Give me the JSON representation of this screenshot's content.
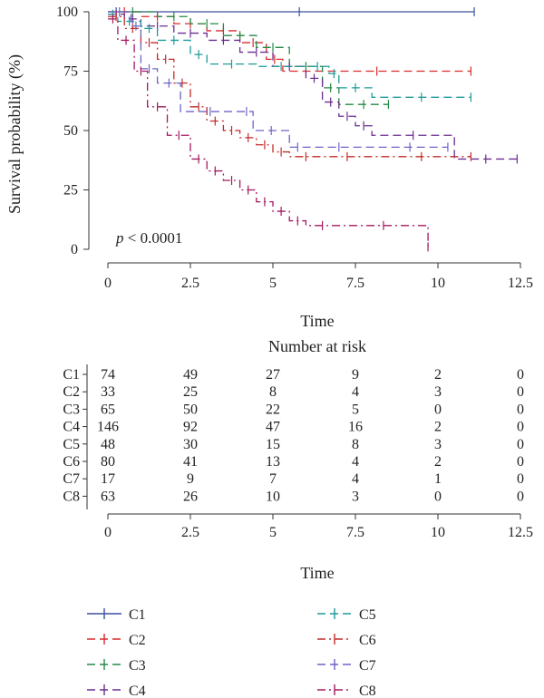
{
  "chart_data": {
    "type": "line",
    "subtype": "kaplan-meier",
    "xlabel": "Time",
    "ylabel": "Survival probability (%)",
    "xlim": [
      0,
      12.5
    ],
    "ylim": [
      0,
      100
    ],
    "x_ticks": [
      "0",
      "2.5",
      "5",
      "7.5",
      "10",
      "12.5"
    ],
    "y_ticks": [
      "0",
      "25",
      "50",
      "75",
      "100"
    ],
    "annotation": {
      "p_label": "p",
      "p_value": " < 0.0001"
    },
    "legend_position": "bottom",
    "series": [
      {
        "name": "C1",
        "color": "#3c4fa0",
        "dash": "solid",
        "x": [
          0,
          0.5,
          11.1
        ],
        "y": [
          100,
          100,
          100
        ]
      },
      {
        "name": "C2",
        "color": "#d92b2b",
        "dash": "dashed",
        "x": [
          0,
          1.0,
          2.0,
          3.0,
          4.0,
          4.8,
          5.3,
          11.0
        ],
        "y": [
          100,
          98,
          95,
          92,
          87,
          80,
          75,
          75
        ]
      },
      {
        "name": "C3",
        "color": "#238a46",
        "dash": "dashed",
        "x": [
          0,
          1.5,
          2.5,
          3.5,
          4.5,
          5.5,
          6.5,
          7.0,
          8.5
        ],
        "y": [
          100,
          98,
          95,
          90,
          85,
          77,
          68,
          61,
          61
        ]
      },
      {
        "name": "C4",
        "color": "#6a2d8f",
        "dash": "dashed",
        "x": [
          0,
          0.5,
          1.0,
          2.0,
          3.0,
          4.0,
          5.0,
          6.0,
          6.5,
          7.0,
          7.5,
          8.0,
          10.5,
          12.4
        ],
        "y": [
          99,
          97,
          94,
          91,
          88,
          83,
          77,
          72,
          62,
          56,
          52,
          48,
          38,
          38
        ]
      },
      {
        "name": "C5",
        "color": "#1f9a9a",
        "dash": "dashed",
        "x": [
          0,
          0.3,
          1.0,
          1.5,
          2.5,
          3.0,
          4.5,
          6.0,
          6.7,
          7.0,
          8.0,
          11.0
        ],
        "y": [
          99,
          96,
          93,
          88,
          82,
          78,
          77,
          77,
          74,
          68,
          64,
          64
        ]
      },
      {
        "name": "C6",
        "color": "#c42b2b",
        "dash": "dash-dot",
        "x": [
          0,
          0.5,
          1.0,
          1.5,
          2.0,
          2.5,
          3.0,
          3.5,
          4.0,
          4.5,
          5.0,
          5.5,
          6.5,
          8.0,
          11.0
        ],
        "y": [
          98,
          93,
          87,
          80,
          70,
          60,
          54,
          50,
          47,
          44,
          41,
          39,
          39,
          39,
          39
        ]
      },
      {
        "name": "C7",
        "color": "#6e63c6",
        "dash": "dashed",
        "x": [
          0,
          0.7,
          1.0,
          1.5,
          2.2,
          4.0,
          4.4,
          5.5,
          6.0,
          8.0,
          10.3
        ],
        "y": [
          100,
          94,
          76,
          70,
          58,
          58,
          50,
          43,
          43,
          43,
          43
        ]
      },
      {
        "name": "C8",
        "color": "#a3185f",
        "dash": "dash-dot",
        "x": [
          0,
          0.3,
          0.8,
          1.2,
          1.8,
          2.5,
          3.0,
          3.5,
          4.0,
          4.5,
          5.0,
          5.5,
          6.0,
          7.0,
          9.7,
          9.7
        ],
        "y": [
          97,
          88,
          75,
          60,
          48,
          38,
          33,
          29,
          25,
          20,
          16,
          12,
          10,
          10,
          10,
          1
        ]
      }
    ]
  },
  "risk_table": {
    "title": "Number at risk",
    "xlabel": "Time",
    "x_ticks": [
      "0",
      "2.5",
      "5",
      "7.5",
      "10",
      "12.5"
    ],
    "rows": [
      {
        "name": "C1",
        "color": "#3c4fa0",
        "values": [
          "74",
          "49",
          "27",
          "9",
          "2",
          "0"
        ]
      },
      {
        "name": "C2",
        "color": "#d92b2b",
        "values": [
          "33",
          "25",
          "8",
          "4",
          "3",
          "0"
        ]
      },
      {
        "name": "C3",
        "color": "#238a46",
        "values": [
          "65",
          "50",
          "22",
          "5",
          "0",
          "0"
        ]
      },
      {
        "name": "C4",
        "color": "#6a2d8f",
        "values": [
          "146",
          "92",
          "47",
          "16",
          "2",
          "0"
        ]
      },
      {
        "name": "C5",
        "color": "#1f9a9a",
        "values": [
          "48",
          "30",
          "15",
          "8",
          "3",
          "0"
        ]
      },
      {
        "name": "C6",
        "color": "#c42b2b",
        "values": [
          "80",
          "41",
          "13",
          "4",
          "2",
          "0"
        ]
      },
      {
        "name": "C7",
        "color": "#6e63c6",
        "values": [
          "17",
          "9",
          "7",
          "4",
          "1",
          "0"
        ]
      },
      {
        "name": "C8",
        "color": "#a3185f",
        "values": [
          "63",
          "26",
          "10",
          "3",
          "0",
          "0"
        ]
      }
    ]
  }
}
